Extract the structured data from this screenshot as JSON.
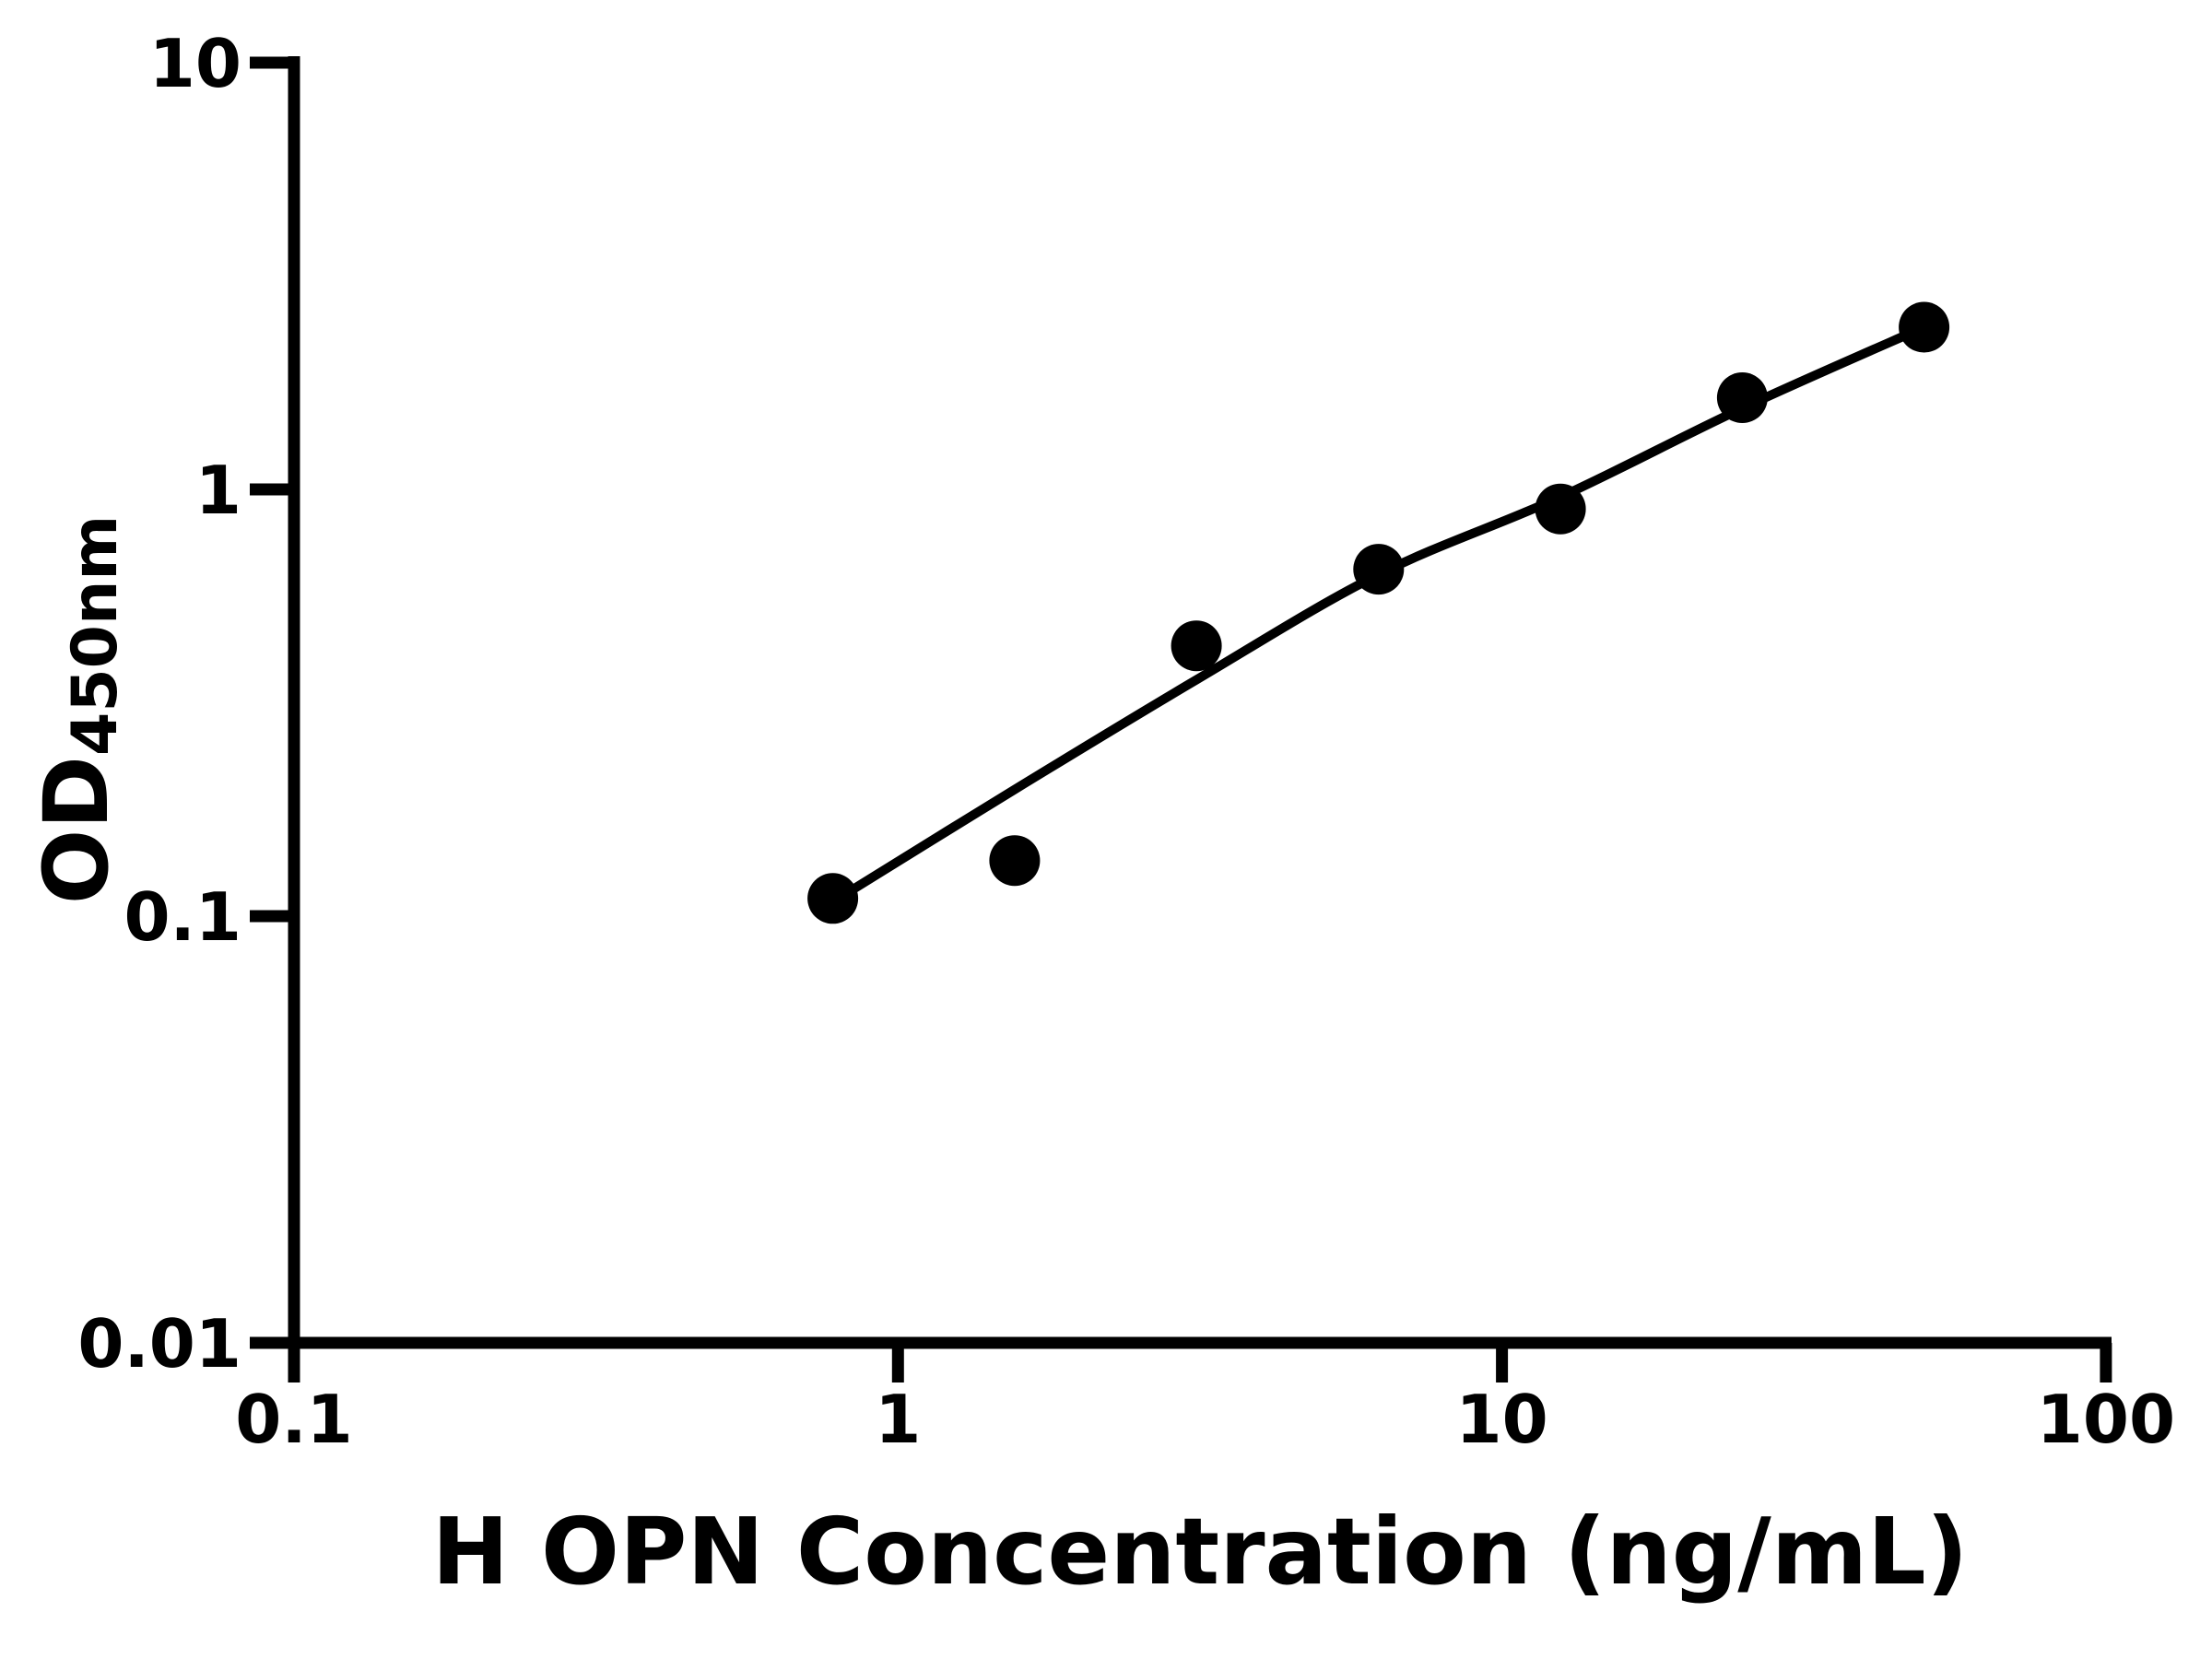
{
  "figure": {
    "background_color": "#ffffff",
    "ink_color": "#000000"
  },
  "x_axis": {
    "title": "H OPN Concentration (ng/mL)",
    "tick_labels": [
      "0.1",
      "1",
      "10",
      "100"
    ]
  },
  "y_axis": {
    "label_main": "OD",
    "label_sub": "450nm",
    "tick_labels": [
      "10",
      "1",
      "0.1",
      "0.01"
    ]
  },
  "chart_data": {
    "type": "scatter",
    "title": "",
    "xlabel": "H OPN Concentration (ng/mL)",
    "ylabel": "OD450nm",
    "x_scale": "log",
    "y_scale": "log",
    "xlim": [
      0.1,
      100
    ],
    "ylim": [
      0.01,
      10
    ],
    "x_ticks": [
      0.1,
      1,
      10,
      100
    ],
    "y_ticks": [
      10,
      1,
      0.1,
      0.01
    ],
    "grid": false,
    "legend": false,
    "marker_color": "#000000",
    "line_color": "#000000",
    "series": [
      {
        "name": "standard-points",
        "type": "scatter",
        "x": [
          0.78,
          1.56,
          3.12,
          6.25,
          12.5,
          25,
          50
        ],
        "y": [
          0.11,
          0.135,
          0.43,
          0.65,
          0.9,
          1.64,
          2.4
        ]
      },
      {
        "name": "fitted-curve",
        "type": "line",
        "x": [
          0.78,
          1.56,
          3.12,
          6.25,
          12.5,
          25,
          50
        ],
        "y": [
          0.108,
          0.198,
          0.358,
          0.632,
          0.96,
          1.55,
          2.4
        ]
      }
    ]
  }
}
